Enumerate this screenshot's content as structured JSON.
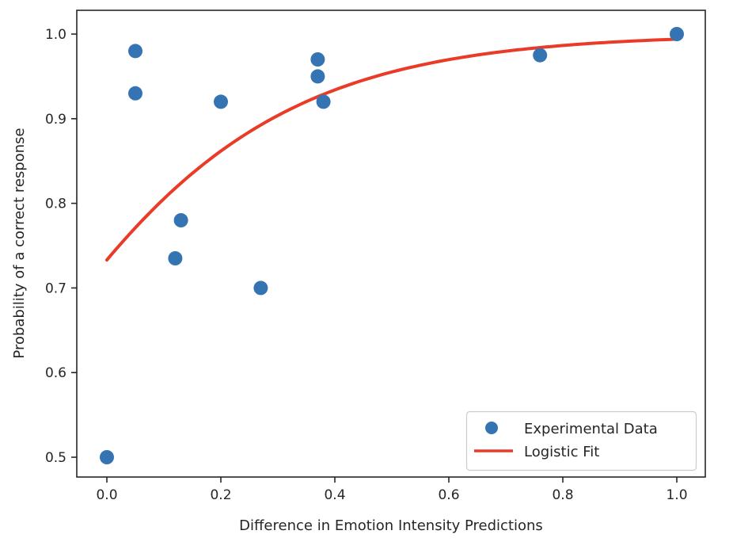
{
  "chart_data": {
    "type": "scatter",
    "title": "",
    "xlabel": "Difference in Emotion Intensity Predictions",
    "ylabel": "Probability of a correct response",
    "xlim": [
      -0.05,
      1.05
    ],
    "ylim": [
      0.475,
      1.025
    ],
    "grid": false,
    "x_axis": {
      "tick_values": [
        0.0,
        0.2,
        0.4,
        0.6,
        0.8,
        1.0
      ],
      "tick_labels": [
        "0.0",
        "0.2",
        "0.4",
        "0.6",
        "0.8",
        "1.0"
      ]
    },
    "y_axis": {
      "tick_values": [
        0.5,
        0.6,
        0.7,
        0.8,
        0.9,
        1.0
      ],
      "tick_labels": [
        "0.5",
        "0.6",
        "0.7",
        "0.8",
        "0.9",
        "1.0"
      ]
    },
    "series": [
      {
        "name": "Experimental Data",
        "type": "scatter",
        "color": "#3474b3",
        "marker": "circle",
        "points": [
          [
            0.0,
            0.5
          ],
          [
            0.05,
            0.98
          ],
          [
            0.05,
            0.93
          ],
          [
            0.12,
            0.735
          ],
          [
            0.13,
            0.78
          ],
          [
            0.2,
            0.92
          ],
          [
            0.27,
            0.7
          ],
          [
            0.37,
            0.97
          ],
          [
            0.37,
            0.95
          ],
          [
            0.38,
            0.92
          ],
          [
            0.76,
            0.975
          ],
          [
            1.0,
            1.0
          ]
        ]
      },
      {
        "name": "Logistic Fit",
        "type": "line",
        "color": "#ea3b28",
        "fit": {
          "form": "1/(1+exp(-(a+b*x)))",
          "a": 1.01,
          "b": 4.1
        },
        "x_range": [
          0.0,
          1.0
        ]
      }
    ],
    "legend": {
      "position": "lower right",
      "entries": [
        "Experimental Data",
        "Logistic Fit"
      ]
    },
    "colors": {
      "scatter": "#3474b3",
      "fit_line": "#ea3b28",
      "axis": "#262626",
      "legend_border": "#cccccc",
      "background": "#ffffff"
    }
  }
}
